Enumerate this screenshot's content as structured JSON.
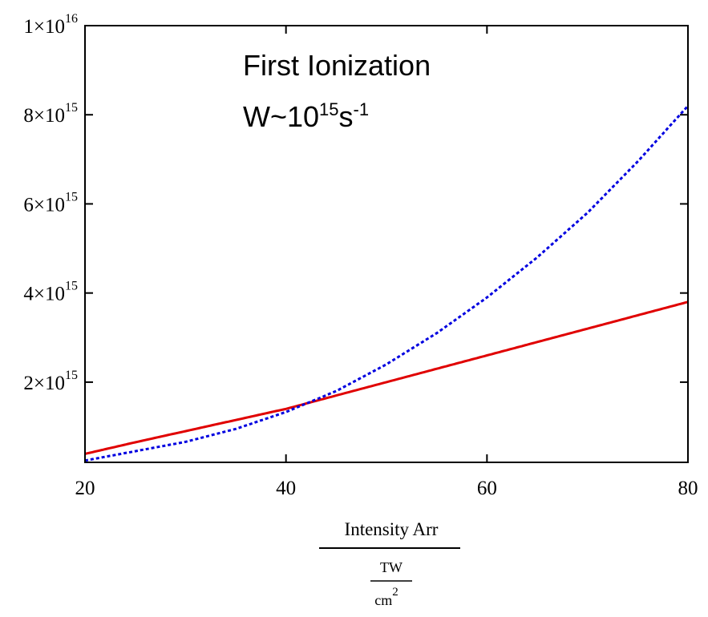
{
  "chart_data": {
    "type": "line",
    "title": "",
    "annotation": {
      "line1": "First Ionization",
      "line2_base": "W~10",
      "line2_exp1": "15",
      "line2_mid": "s",
      "line2_exp2": "-1"
    },
    "xlabel": {
      "numerator": "Intensity Arr",
      "denominator_top": "TW",
      "denominator_bottom_base": "cm",
      "denominator_bottom_exp": "2"
    },
    "xlim": [
      20,
      80
    ],
    "ylim": [
      200000000000000.0,
      1e+16
    ],
    "x_ticks": [
      {
        "value": 20,
        "label": "20"
      },
      {
        "value": 40,
        "label": "40"
      },
      {
        "value": 60,
        "label": "60"
      },
      {
        "value": 80,
        "label": "80"
      }
    ],
    "y_ticks": [
      {
        "value": 2000000000000000.0,
        "mant": "2×10",
        "exp": "15"
      },
      {
        "value": 4000000000000000.0,
        "mant": "4×10",
        "exp": "15"
      },
      {
        "value": 6000000000000000.0,
        "mant": "6×10",
        "exp": "15"
      },
      {
        "value": 8000000000000000.0,
        "mant": "8×10",
        "exp": "15"
      },
      {
        "value": 1e+16,
        "mant": "1×10",
        "exp": "16"
      }
    ],
    "x": [
      20,
      25,
      30,
      35,
      40,
      45,
      50,
      55,
      60,
      65,
      70,
      75,
      80
    ],
    "series": [
      {
        "color": "#e00000",
        "style": "solid",
        "values": [
          390000000000000.0,
          650000000000000.0,
          900000000000000.0,
          1150000000000000.0,
          1400000000000000.0,
          1700000000000000.0,
          2000000000000000.0,
          2300000000000000.0,
          2600000000000000.0,
          2900000000000000.0,
          3200000000000000.0,
          3500000000000000.0,
          3800000000000000.0
        ]
      },
      {
        "color": "#0000e0",
        "style": "dotted",
        "values": [
          240000000000000.0,
          450000000000000.0,
          660000000000000.0,
          950000000000000.0,
          1330000000000000.0,
          1800000000000000.0,
          2400000000000000.0,
          3100000000000000.0,
          3900000000000000.0,
          4800000000000000.0,
          5800000000000000.0,
          6950000000000000.0,
          8200000000000000.0
        ]
      }
    ]
  }
}
